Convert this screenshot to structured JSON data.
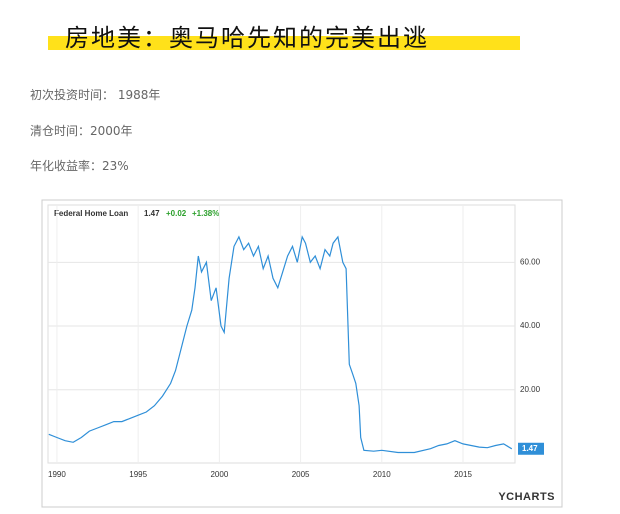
{
  "header": {
    "title": "房地美：奥马哈先知的完美出逃"
  },
  "info": [
    "初次投资时间： 1988年",
    "清仓时间：2000年",
    "年化收益率：23%"
  ],
  "chart_data": {
    "type": "line",
    "series": [
      {
        "name": "Federal Home Loan",
        "color": "#2f8fd8",
        "values": [
          6,
          5,
          4,
          3.5,
          5,
          7,
          8,
          9,
          10,
          10,
          11,
          12,
          13,
          15,
          18,
          22,
          26,
          32,
          40,
          45,
          52,
          62,
          57,
          60,
          48,
          52,
          40,
          38,
          55,
          65,
          68,
          64,
          66,
          62,
          65,
          58,
          62,
          55,
          52,
          57,
          62,
          65,
          60,
          68,
          66,
          60,
          62,
          58,
          64,
          62,
          66,
          68,
          60,
          58,
          28,
          25,
          22,
          15,
          5,
          1,
          0.7,
          1,
          0.3,
          0.3,
          1.5,
          2.5,
          3,
          4,
          3,
          2,
          1.8,
          2.5,
          3,
          1.47
        ]
      }
    ],
    "x": [
      1989.5,
      1990,
      1990.5,
      1991,
      1991.5,
      1992,
      1992.5,
      1993,
      1993.5,
      1994,
      1994.5,
      1995,
      1995.5,
      1996,
      1996.5,
      1997,
      1997.3,
      1997.6,
      1998,
      1998.3,
      1998.5,
      1998.7,
      1998.9,
      1999.2,
      1999.5,
      1999.8,
      2000.1,
      2000.3,
      2000.6,
      2000.9,
      2001.2,
      2001.5,
      2001.8,
      2002.1,
      2002.4,
      2002.7,
      2003,
      2003.3,
      2003.6,
      2003.9,
      2004.2,
      2004.5,
      2004.8,
      2005.1,
      2005.3,
      2005.6,
      2005.9,
      2006.2,
      2006.5,
      2006.8,
      2007,
      2007.3,
      2007.6,
      2007.8,
      2008,
      2008.2,
      2008.4,
      2008.6,
      2008.7,
      2008.9,
      2009.5,
      2010,
      2011,
      2012,
      2013,
      2013.5,
      2014,
      2014.5,
      2015,
      2016,
      2016.5,
      2017,
      2017.5,
      2018
    ],
    "xlim": [
      1989.45,
      2018.2
    ],
    "xticks": [
      1990,
      1995,
      2000,
      2005,
      2010,
      2015
    ],
    "ylim": [
      -3,
      78
    ],
    "yticks": [
      {
        "value": 20,
        "label": "20.00"
      },
      {
        "value": 40,
        "label": "40.00"
      },
      {
        "value": 60,
        "label": "60.00"
      }
    ],
    "grid": true,
    "legend": {
      "price": "1.47",
      "change": "+0.02",
      "change_pct": "+1.38%"
    },
    "last_label": "1.47",
    "brand": "YCHARTS"
  }
}
